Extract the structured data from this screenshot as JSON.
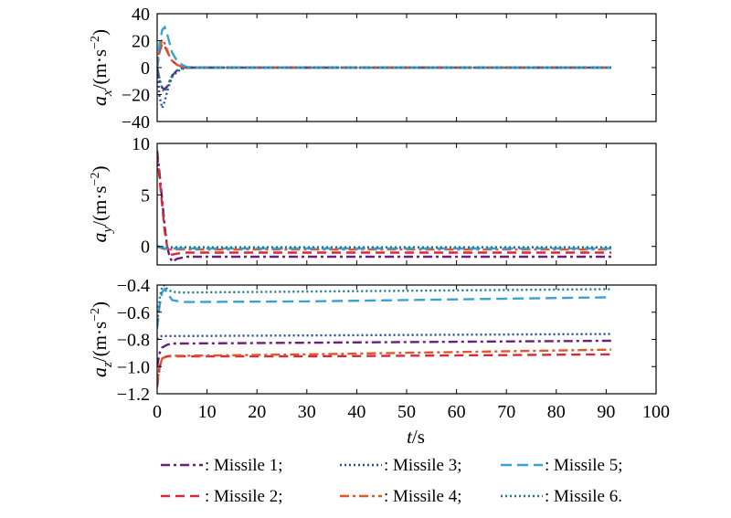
{
  "chart_data": [
    {
      "type": "line",
      "panel": "ax",
      "ylabel": {
        "sym": "a",
        "sub": "x",
        "unit": "/(m·s",
        "exp": "−2",
        "close": ")"
      },
      "ylim": [
        -40,
        40
      ],
      "yticks": [
        "40",
        "20",
        "0",
        "−20",
        "−40"
      ],
      "ytick_values": [
        40,
        20,
        0,
        -20,
        -40
      ],
      "xlim": [
        0,
        100
      ],
      "grid": false,
      "series": [
        {
          "name": "Missile 1",
          "x": [
            0,
            0.5,
            1,
            1.5,
            2,
            2.5,
            3,
            4,
            5,
            6,
            8,
            91
          ],
          "y": [
            0,
            -10,
            -15,
            -16,
            -14,
            -10,
            -6,
            -2,
            -0.5,
            0,
            0,
            0
          ]
        },
        {
          "name": "Missile 2",
          "x": [
            0,
            0.5,
            1,
            1.5,
            2,
            2.5,
            3,
            4,
            5,
            6,
            8,
            91
          ],
          "y": [
            0,
            12,
            18,
            16,
            12,
            8,
            5,
            2,
            0.5,
            0,
            0,
            0
          ]
        },
        {
          "name": "Missile 3",
          "x": [
            0,
            0.5,
            1,
            1.5,
            2,
            2.5,
            3,
            4,
            5,
            6,
            8,
            91
          ],
          "y": [
            0,
            -22,
            -30,
            -25,
            -18,
            -12,
            -7,
            -3,
            -1,
            0,
            0,
            0
          ]
        },
        {
          "name": "Missile 4",
          "x": [
            0,
            0.5,
            1,
            1.5,
            2,
            2.5,
            3,
            4,
            5,
            6,
            8,
            91
          ],
          "y": [
            0,
            14,
            21,
            18,
            13,
            8,
            5,
            2,
            0.5,
            0,
            0,
            0
          ]
        },
        {
          "name": "Missile 5",
          "x": [
            0,
            0.5,
            1,
            1.5,
            2,
            2.5,
            3,
            4,
            5,
            6,
            8,
            91
          ],
          "y": [
            0,
            18,
            28,
            30,
            25,
            18,
            11,
            5,
            2,
            0.5,
            0,
            0
          ]
        },
        {
          "name": "Missile 6",
          "x": [
            0,
            0.5,
            1,
            1.5,
            2,
            2.5,
            3,
            4,
            5,
            6,
            8,
            91
          ],
          "y": [
            0,
            -8,
            -16,
            -18,
            -15,
            -10,
            -6,
            -2,
            -0.5,
            0,
            0,
            0
          ]
        }
      ]
    },
    {
      "type": "line",
      "panel": "ay",
      "ylabel": {
        "sym": "a",
        "sub": "y",
        "unit": "/(m·s",
        "exp": "−2",
        "close": ")"
      },
      "ylim": [
        -1.8,
        10
      ],
      "yticks": [
        "10",
        "5",
        "0"
      ],
      "ytick_values": [
        10,
        5,
        0
      ],
      "xlim": [
        0,
        100
      ],
      "grid": false,
      "series": [
        {
          "name": "Missile 1",
          "x": [
            0,
            0.5,
            1,
            1.5,
            2,
            2.5,
            3,
            4,
            6,
            91
          ],
          "y": [
            9.3,
            7,
            4.5,
            2,
            0,
            -1,
            -1.5,
            -1.2,
            -1.0,
            -1.0
          ]
        },
        {
          "name": "Missile 2",
          "x": [
            0,
            0.5,
            1,
            1.5,
            2,
            2.5,
            3,
            4,
            6,
            91
          ],
          "y": [
            9.0,
            6.5,
            4,
            1.5,
            0,
            -0.7,
            -0.8,
            -0.7,
            -0.6,
            -0.6
          ]
        },
        {
          "name": "Missile 3",
          "x": [
            0,
            1,
            2,
            3,
            91
          ],
          "y": [
            0,
            -0.1,
            -0.1,
            -0.1,
            -0.1
          ]
        },
        {
          "name": "Missile 4",
          "x": [
            0,
            1,
            2,
            3,
            91
          ],
          "y": [
            0,
            -0.2,
            -0.3,
            -0.3,
            -0.3
          ]
        },
        {
          "name": "Missile 5",
          "x": [
            0,
            1,
            2,
            3,
            91
          ],
          "y": [
            0,
            -0.15,
            -0.2,
            -0.2,
            -0.2
          ]
        },
        {
          "name": "Missile 6",
          "x": [
            0,
            1,
            2,
            3,
            91
          ],
          "y": [
            0,
            -0.05,
            -0.08,
            -0.08,
            -0.08
          ]
        }
      ]
    },
    {
      "type": "line",
      "panel": "az",
      "ylabel": {
        "sym": "a",
        "sub": "z",
        "unit": "/(m·s",
        "exp": "−2",
        "close": ")"
      },
      "ylim": [
        -1.2,
        -0.4
      ],
      "yticks": [
        "−0.4",
        "−0.6",
        "−0.8",
        "−1.0",
        "−1.2"
      ],
      "ytick_values": [
        -0.4,
        -0.6,
        -0.8,
        -1.0,
        -1.2
      ],
      "xlim": [
        0,
        100
      ],
      "xticks": [
        "0",
        "10",
        "20",
        "30",
        "40",
        "50",
        "60",
        "70",
        "80",
        "90",
        "100"
      ],
      "xtick_values": [
        0,
        10,
        20,
        30,
        40,
        50,
        60,
        70,
        80,
        90,
        100
      ],
      "xlabel": {
        "sym": "t",
        "unit": "/s"
      },
      "grid": false,
      "series": [
        {
          "name": "Missile 1",
          "x": [
            0,
            0.5,
            1,
            2,
            3,
            5,
            91
          ],
          "y": [
            -1.0,
            -0.9,
            -0.86,
            -0.84,
            -0.83,
            -0.83,
            -0.81
          ]
        },
        {
          "name": "Missile 2",
          "x": [
            0,
            0.5,
            1,
            2,
            3,
            5,
            30,
            91
          ],
          "y": [
            -1.15,
            -1.0,
            -0.94,
            -0.925,
            -0.925,
            -0.925,
            -0.925,
            -0.91
          ]
        },
        {
          "name": "Missile 3",
          "x": [
            0,
            0.5,
            1,
            2,
            3,
            5,
            91
          ],
          "y": [
            -0.8,
            -0.78,
            -0.775,
            -0.775,
            -0.775,
            -0.775,
            -0.76
          ]
        },
        {
          "name": "Missile 4",
          "x": [
            0,
            0.5,
            1,
            2,
            3,
            5,
            30,
            91
          ],
          "y": [
            -1.12,
            -1.0,
            -0.94,
            -0.92,
            -0.92,
            -0.92,
            -0.91,
            -0.875
          ]
        },
        {
          "name": "Missile 5",
          "x": [
            0,
            0.5,
            1,
            1.5,
            2,
            3,
            5,
            30,
            91
          ],
          "y": [
            -0.72,
            -0.55,
            -0.45,
            -0.43,
            -0.46,
            -0.51,
            -0.525,
            -0.52,
            -0.49
          ]
        },
        {
          "name": "Missile 6",
          "x": [
            0,
            0.5,
            1,
            1.5,
            2,
            3,
            5,
            91
          ],
          "y": [
            -0.7,
            -0.5,
            -0.41,
            -0.4,
            -0.43,
            -0.45,
            -0.455,
            -0.43
          ]
        }
      ]
    }
  ],
  "legend": {
    "position": "bottom",
    "items": [
      {
        "label": ": Missile 1;",
        "color": "#6a1f7a",
        "dash": "10,4,3,4"
      },
      {
        "label": ": Missile 3;",
        "color": "#2b4aa0",
        "dash": "2,3"
      },
      {
        "label": ": Missile 5;",
        "color": "#3aa0d8",
        "dash": "12,6"
      },
      {
        "label": ": Missile 2;",
        "color": "#d42a3a",
        "dash": "10,6"
      },
      {
        "label": ": Missile 4;",
        "color": "#e2572a",
        "dash": "10,4,3,4"
      },
      {
        "label": ": Missile 6.",
        "color": "#1f7a86",
        "dash": "2,3"
      }
    ]
  },
  "series_styles": {
    "Missile 1": {
      "color": "#6a1f7a",
      "dash": "10,4,3,4"
    },
    "Missile 2": {
      "color": "#d42a3a",
      "dash": "10,6"
    },
    "Missile 3": {
      "color": "#2b4aa0",
      "dash": "2,3"
    },
    "Missile 4": {
      "color": "#e2572a",
      "dash": "10,4,3,4"
    },
    "Missile 5": {
      "color": "#3aa0d8",
      "dash": "12,6"
    },
    "Missile 6": {
      "color": "#1f7a86",
      "dash": "2,3"
    }
  }
}
